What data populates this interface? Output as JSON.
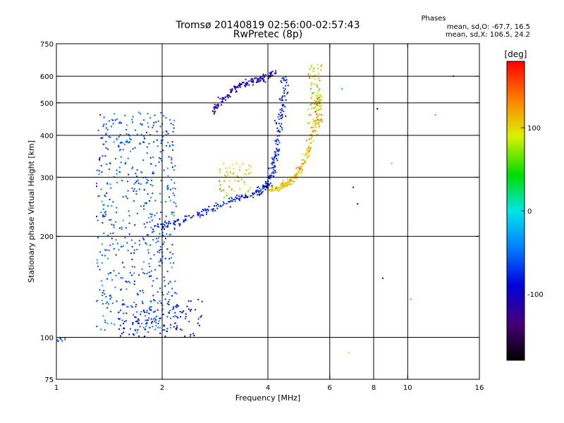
{
  "chart_data": {
    "type": "scatter",
    "title": "Tromsø 20140819 02:56:00-02:57:43",
    "subtitle": "RwPretec (8p)",
    "xlabel": "Frequency [MHz]",
    "ylabel": "Stationary phase Virtual Height [km]",
    "xscale": "log2",
    "yscale": "log",
    "xlim": [
      1,
      16
    ],
    "ylim": [
      75,
      750
    ],
    "x_ticks": [
      1,
      2,
      4,
      6,
      8,
      10,
      16
    ],
    "x_tick_labels": [
      "1",
      "2",
      "4",
      "6",
      "8",
      "10",
      "16"
    ],
    "x_grid": [
      2,
      4,
      6,
      8,
      10
    ],
    "y_ticks": [
      75,
      100,
      200,
      300,
      400,
      500,
      600,
      750
    ],
    "y_tick_labels": [
      "75",
      "100",
      "200",
      "300",
      "400",
      "500",
      "600",
      "750"
    ],
    "y_grid": [
      100,
      200,
      300,
      400,
      500,
      600
    ],
    "grid": true,
    "stats_title": "Phases",
    "stats_line_o": "mean, sd,O: -67.7, 16.5",
    "stats_line_x": "mean, sd,X: 106.5, 24.2",
    "colorbar": {
      "label": "[deg]",
      "range": [
        -180,
        180
      ],
      "ticks": [
        100,
        0,
        -100
      ],
      "tick_labels": [
        "100",
        "0",
        "-100"
      ],
      "colormap": "rainbow"
    },
    "series": [
      {
        "name": "O-mode E/F1 trace (broad cloud)",
        "kind": "cloud",
        "x_range": [
          1.3,
          2.2
        ],
        "height_range": [
          105,
          470
        ],
        "phase": -60,
        "phase_sd": 15,
        "density": 600
      },
      {
        "name": "Low-frequency E-region echoes",
        "kind": "cloud",
        "x_range": [
          1.5,
          2.6
        ],
        "height_range": [
          100,
          130
        ],
        "phase": -80,
        "phase_sd": 20,
        "density": 120
      },
      {
        "name": "Ground-level echo",
        "kind": "line",
        "x": [
          1.0,
          1.08
        ],
        "y": [
          97,
          99
        ],
        "phase": -60
      },
      {
        "name": "O-mode F trace",
        "kind": "curve",
        "x": [
          1.85,
          2.2,
          2.6,
          3.0,
          3.4,
          3.8,
          4.0,
          4.1,
          4.2,
          4.3,
          4.4,
          4.5
        ],
        "y": [
          210,
          220,
          235,
          250,
          262,
          272,
          285,
          310,
          350,
          420,
          500,
          600
        ],
        "phase": -80,
        "phase_sd": 12
      },
      {
        "name": "O-mode F trace (upper branch)",
        "kind": "curve",
        "x": [
          2.8,
          3.0,
          3.3,
          3.6,
          3.9,
          4.2
        ],
        "y": [
          470,
          520,
          560,
          580,
          590,
          620
        ],
        "phase": -110,
        "phase_sd": 15
      },
      {
        "name": "X-mode F trace",
        "kind": "curve",
        "x": [
          4.0,
          4.3,
          4.6,
          4.9,
          5.1,
          5.3,
          5.5,
          5.6
        ],
        "y": [
          275,
          278,
          290,
          310,
          340,
          380,
          440,
          520
        ],
        "phase": 110,
        "phase_sd": 20
      },
      {
        "name": "X-mode upper echoes",
        "kind": "cloud",
        "x_range": [
          5.2,
          5.7
        ],
        "height_range": [
          430,
          650
        ],
        "phase": 100,
        "phase_sd": 25,
        "density": 90
      },
      {
        "name": "X-mode low echoes near 3 MHz",
        "kind": "cloud",
        "x_range": [
          2.9,
          3.6
        ],
        "height_range": [
          260,
          330
        ],
        "phase": 100,
        "phase_sd": 25,
        "density": 60
      },
      {
        "name": "Scattered isolated points",
        "kind": "scatter",
        "x": [
          6.5,
          7.0,
          8.5,
          9.0,
          10.2,
          12.0,
          13.5,
          6.8,
          7.2,
          8.2
        ],
        "y": [
          550,
          280,
          150,
          330,
          130,
          460,
          600,
          90,
          250,
          480
        ],
        "phase": -40,
        "phase_sd": 90
      }
    ]
  }
}
